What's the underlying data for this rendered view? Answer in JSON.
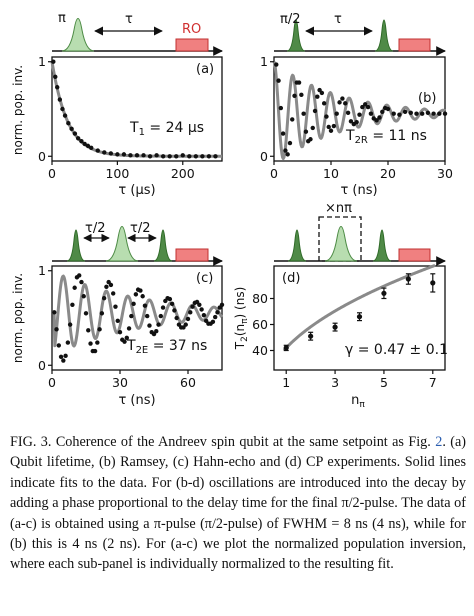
{
  "chart_data": [
    {
      "panel": "a",
      "type": "scatter",
      "sequence_labels": {
        "pulse": "π",
        "delay": "τ",
        "readout": "RO"
      },
      "xlabel": "τ (μs)",
      "ylabel": "norm. pop. inv.",
      "panel_label": "(a)",
      "annotation": "T1 = 24 μs",
      "xlim": [
        0,
        260
      ],
      "ylim": [
        -0.05,
        1.05
      ],
      "xticks": [
        "0",
        "100",
        "200"
      ],
      "yticks": [
        "0",
        "1"
      ],
      "fit": {
        "model": "exponential decay",
        "T1_us": 24
      },
      "x": [
        2,
        5,
        8,
        12,
        16,
        20,
        25,
        30,
        35,
        40,
        45,
        50,
        55,
        60,
        70,
        80,
        90,
        100,
        110,
        120,
        130,
        140,
        150,
        160,
        170,
        180,
        190,
        200,
        210,
        220,
        230,
        240,
        250
      ],
      "y": [
        1.0,
        0.84,
        0.73,
        0.6,
        0.5,
        0.43,
        0.35,
        0.29,
        0.24,
        0.19,
        0.16,
        0.13,
        0.11,
        0.09,
        0.06,
        0.04,
        0.03,
        0.02,
        0.02,
        0.01,
        0.01,
        0.01,
        0.0,
        0.01,
        0.0,
        0.0,
        0.0,
        0.01,
        0.0,
        0.0,
        0.0,
        0.0,
        0.0
      ]
    },
    {
      "panel": "b",
      "type": "scatter",
      "sequence_labels": {
        "pulse": "π/2",
        "delay": "τ"
      },
      "xlabel": "τ (ns)",
      "ylabel": "",
      "panel_label": "(b)",
      "annotation": "T2R = 11 ns",
      "xlim": [
        0,
        30
      ],
      "ylim": [
        -0.05,
        1.05
      ],
      "xticks": [
        "0",
        "10",
        "20",
        "30"
      ],
      "yticks": [
        "0",
        "1"
      ],
      "fit": {
        "model": "damped cosine",
        "T2R_ns": 11,
        "period_ns": 3.3,
        "offset": 0.45
      },
      "x": [
        0.4,
        0.8,
        1.2,
        1.6,
        2.0,
        2.4,
        2.8,
        3.2,
        3.6,
        4.0,
        4.4,
        4.8,
        5.2,
        5.6,
        6.0,
        6.4,
        6.8,
        7.2,
        7.6,
        8.0,
        8.4,
        8.8,
        9.2,
        9.6,
        10.0,
        10.5,
        11.0,
        11.5,
        12.0,
        12.5,
        13.0,
        13.5,
        14.0,
        14.5,
        15.0,
        15.5,
        16.0,
        16.5,
        17.0,
        17.5,
        18.0,
        18.5,
        19.0,
        19.5,
        20.0,
        21,
        22,
        23,
        24,
        25,
        26,
        27,
        28,
        29,
        30
      ],
      "y": [
        0.97,
        0.8,
        0.51,
        0.24,
        0.06,
        0.02,
        0.14,
        0.39,
        0.64,
        0.78,
        0.78,
        0.65,
        0.45,
        0.26,
        0.16,
        0.18,
        0.3,
        0.48,
        0.63,
        0.7,
        0.67,
        0.56,
        0.42,
        0.31,
        0.27,
        0.32,
        0.45,
        0.57,
        0.61,
        0.56,
        0.46,
        0.37,
        0.34,
        0.36,
        0.44,
        0.52,
        0.55,
        0.52,
        0.45,
        0.4,
        0.38,
        0.41,
        0.47,
        0.51,
        0.5,
        0.45,
        0.44,
        0.47,
        0.46,
        0.45,
        0.45,
        0.46,
        0.45,
        0.45,
        0.45
      ]
    },
    {
      "panel": "c",
      "type": "scatter",
      "sequence_labels": {
        "delay1": "τ/2",
        "delay2": "τ/2"
      },
      "xlabel": "τ (ns)",
      "ylabel": "norm. pop. inv.",
      "panel_label": "(c)",
      "annotation": "T2E = 37 ns",
      "xlim": [
        0,
        75
      ],
      "ylim": [
        -0.05,
        1.05
      ],
      "xticks": [
        "0",
        "30",
        "60"
      ],
      "yticks": [
        "0",
        "1"
      ],
      "fit": {
        "model": "damped cosine",
        "T2E_ns": 37,
        "period_ns": 9.5,
        "offset": 0.55
      },
      "x": [
        1,
        2,
        3,
        4,
        5,
        6,
        7,
        8,
        9,
        10,
        11,
        12,
        13,
        14,
        15,
        16,
        17,
        18,
        19,
        20,
        21,
        22,
        23,
        24,
        25,
        26,
        27,
        28,
        29,
        30,
        31,
        32,
        33,
        34,
        35,
        36,
        37,
        38,
        39,
        40,
        41,
        42,
        43,
        44,
        45,
        46,
        47,
        48,
        49,
        50,
        51,
        52,
        53,
        54,
        55,
        56,
        57,
        58,
        59,
        60,
        61,
        62,
        63,
        64,
        65,
        66,
        67,
        68,
        69,
        70,
        71,
        72,
        73,
        74,
        75
      ],
      "y": [
        0.56,
        0.38,
        0.21,
        0.09,
        0.05,
        0.1,
        0.24,
        0.43,
        0.64,
        0.82,
        0.93,
        0.95,
        0.88,
        0.73,
        0.55,
        0.37,
        0.23,
        0.15,
        0.15,
        0.24,
        0.38,
        0.55,
        0.71,
        0.83,
        0.88,
        0.85,
        0.76,
        0.62,
        0.47,
        0.35,
        0.27,
        0.25,
        0.29,
        0.39,
        0.52,
        0.65,
        0.75,
        0.8,
        0.79,
        0.73,
        0.63,
        0.52,
        0.42,
        0.35,
        0.33,
        0.36,
        0.43,
        0.52,
        0.61,
        0.68,
        0.71,
        0.7,
        0.65,
        0.58,
        0.5,
        0.43,
        0.4,
        0.4,
        0.43,
        0.49,
        0.56,
        0.62,
        0.66,
        0.67,
        0.64,
        0.59,
        0.53,
        0.47,
        0.44,
        0.44,
        0.46,
        0.51,
        0.56,
        0.61,
        0.64
      ]
    },
    {
      "panel": "d",
      "type": "scatter",
      "sequence_labels": {
        "repeat": "×nπ"
      },
      "xlabel": "nπ",
      "ylabel": "T2(nπ) (ns)",
      "panel_label": "(d)",
      "annotation": "γ = 0.47 ± 0.1",
      "xlim": [
        0.5,
        7.5
      ],
      "ylim": [
        25,
        105
      ],
      "xticks": [
        "1",
        "3",
        "5",
        "7"
      ],
      "yticks": [
        "40",
        "60",
        "80"
      ],
      "fit": {
        "model": "power law",
        "gamma": 0.47,
        "gamma_err": 0.1
      },
      "x": [
        1,
        2,
        3,
        4,
        5,
        6,
        7
      ],
      "y": [
        42,
        51,
        58,
        66,
        84,
        95,
        92
      ],
      "yerr": [
        2,
        3,
        3,
        3,
        4,
        4,
        7
      ]
    }
  ],
  "caption": {
    "prefix": "FIG. 3.   Coherence of the Andreev spin qubit at the same setpoint as Fig. ",
    "fig_ref": "2",
    "suffix": ". (a) Qubit lifetime, (b) Ramsey, (c) Hahn-echo and (d) CP experiments. Solid lines indicate fits to the data.  For (b-d) oscillations are introduced into the decay by adding a phase proportional to the delay time for the final π/2-pulse. The data of (a-c) is obtained using a π-pulse (π/2-pulse) of FWHM = 8 ns (4 ns), while for (b) this is 4 ns (2 ns). For (a-c) we plot the normalized population inversion, where each sub-panel is individually normalized to the resulting fit."
  }
}
